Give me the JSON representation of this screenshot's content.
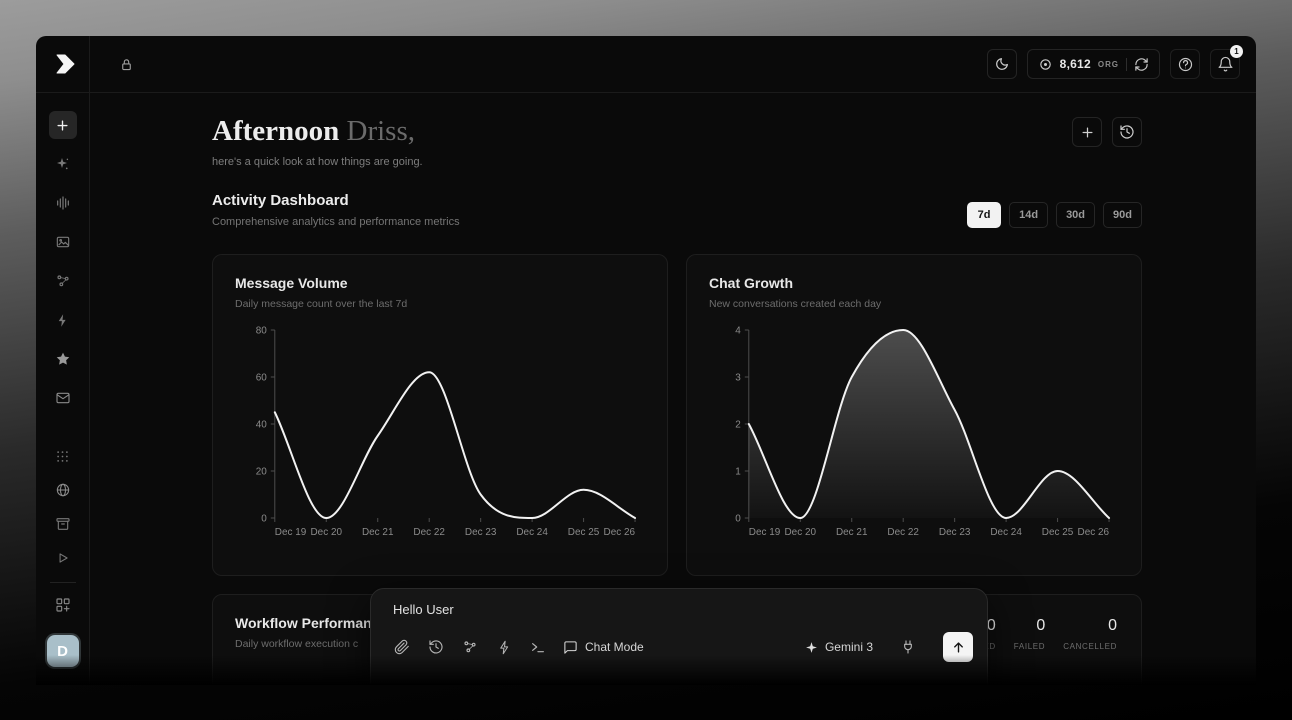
{
  "topbar": {
    "org_count": "8,612",
    "org_label": "ORG",
    "notification_count": "1"
  },
  "sidebar": {
    "avatar_initial": "D"
  },
  "greeting": {
    "salutation": "Afternoon",
    "name": "Driss,",
    "subtitle": "here's a quick look at how things are going."
  },
  "dashboard": {
    "title": "Activity Dashboard",
    "subtitle": "Comprehensive analytics and performance metrics",
    "ranges": [
      {
        "label": "7d",
        "selected": true
      },
      {
        "label": "14d",
        "selected": false
      },
      {
        "label": "30d",
        "selected": false
      },
      {
        "label": "90d",
        "selected": false
      }
    ]
  },
  "chart_data": [
    {
      "type": "line",
      "title": "Message Volume",
      "subtitle": "Daily message count over the last 7d",
      "x": [
        "Dec 19",
        "Dec 20",
        "Dec 21",
        "Dec 22",
        "Dec 23",
        "Dec 24",
        "Dec 25",
        "Dec 26"
      ],
      "values": [
        45,
        0,
        35,
        62,
        10,
        0,
        12,
        0
      ],
      "ylim": [
        0,
        80
      ],
      "yticks": [
        0,
        20,
        40,
        60,
        80
      ],
      "area": false,
      "grid": false,
      "line_color": "#f2f2f2"
    },
    {
      "type": "area",
      "title": "Chat Growth",
      "subtitle": "New conversations created each day",
      "x": [
        "Dec 19",
        "Dec 20",
        "Dec 21",
        "Dec 22",
        "Dec 23",
        "Dec 24",
        "Dec 25",
        "Dec 26"
      ],
      "values": [
        2,
        0,
        3,
        4,
        2.3,
        0,
        1,
        0
      ],
      "ylim": [
        0,
        4
      ],
      "yticks": [
        0,
        1,
        2,
        3,
        4
      ],
      "area": true,
      "grid": false,
      "line_color": "#f2f2f2"
    }
  ],
  "workflow": {
    "title": "Workflow Performance",
    "subtitle": "Daily workflow execution c",
    "stats": [
      {
        "value": "0",
        "label": "COMPLETED"
      },
      {
        "value": "0",
        "label": "FAILED"
      },
      {
        "value": "0",
        "label": "CANCELLED"
      }
    ]
  },
  "chat": {
    "message": "Hello User",
    "mode_label": "Chat Mode",
    "model": "Gemini 3"
  },
  "colors": {
    "selected_range_bg": "#f2f2f2",
    "avatar_bg": "#a9bfc9",
    "line": "#f2f2f2"
  }
}
